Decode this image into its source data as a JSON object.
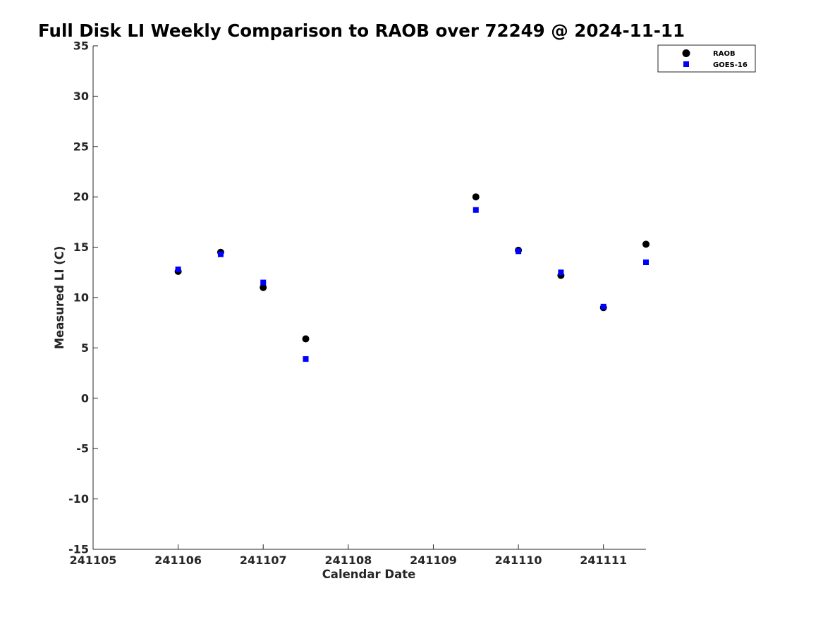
{
  "chart_data": {
    "type": "scatter",
    "title": "Full Disk LI Weekly Comparison to RAOB over 72249 @ 2024-11-11",
    "xlabel": "Calendar Date",
    "ylabel": "Measured LI (C)",
    "xlim": [
      "241105",
      "241111.5"
    ],
    "ylim": [
      -15,
      35
    ],
    "x_ticks": [
      "241105",
      "241106",
      "241107",
      "241108",
      "241109",
      "241110",
      "241111"
    ],
    "y_ticks": [
      35,
      30,
      25,
      20,
      15,
      10,
      5,
      0,
      -5,
      -10,
      -15
    ],
    "grid": false,
    "legend_position": "top-right",
    "x": [
      "241106",
      "241106.5",
      "241107",
      "241107.5",
      "241109.5",
      "241110",
      "241110.5",
      "241111",
      "241111.5"
    ],
    "series": [
      {
        "name": "RAOB",
        "marker": "circle",
        "color": "#000000",
        "values": [
          12.6,
          14.5,
          11.0,
          5.9,
          20.0,
          14.7,
          12.2,
          9.0,
          15.3
        ]
      },
      {
        "name": "GOES-16",
        "marker": "square",
        "color": "#0000ff",
        "values": [
          12.8,
          14.3,
          11.5,
          3.9,
          18.7,
          14.6,
          12.5,
          9.1,
          13.5
        ]
      }
    ]
  }
}
